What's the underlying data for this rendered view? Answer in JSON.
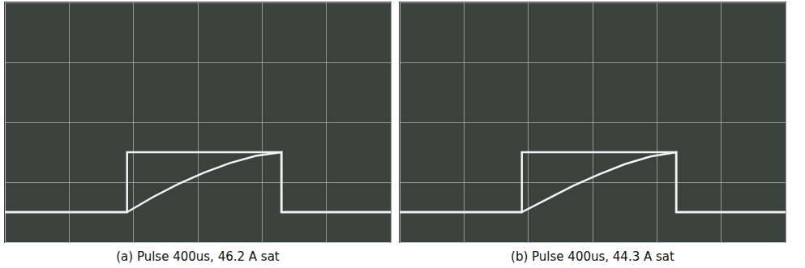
{
  "chart_data": [
    {
      "type": "line",
      "title": "(a) Pulse 400us, 46.2 A sat",
      "x": [
        0,
        1.9,
        1.9,
        2.3,
        2.7,
        3.1,
        3.5,
        3.9,
        4.3,
        4.3,
        6
      ],
      "series": [
        {
          "color": "#f2f2f2",
          "values": [
            0.5,
            0.5,
            1.5,
            1.5,
            1.5,
            1.5,
            1.5,
            1.5,
            1.5,
            0.5,
            0.5
          ]
        },
        {
          "color": "#f2f2f2",
          "values": [
            0.5,
            0.5,
            0.5,
            0.75,
            0.97,
            1.16,
            1.32,
            1.44,
            1.5,
            0.5,
            0.5
          ]
        }
      ],
      "xlim": [
        0,
        6
      ],
      "ylim": [
        0,
        4
      ],
      "xticks": [
        0,
        1,
        2,
        3,
        4,
        5,
        6
      ],
      "yticks": [
        0,
        1,
        2,
        3,
        4
      ],
      "grid": true,
      "tick_labels": false
    },
    {
      "type": "line",
      "title": "(b) Pulse 400us, 44.3 A sat",
      "x": [
        0,
        1.9,
        1.9,
        2.3,
        2.7,
        3.1,
        3.5,
        3.9,
        4.3,
        4.3,
        6
      ],
      "series": [
        {
          "color": "#f2f2f2",
          "values": [
            0.5,
            0.5,
            1.5,
            1.5,
            1.5,
            1.5,
            1.5,
            1.5,
            1.5,
            0.5,
            0.5
          ]
        },
        {
          "color": "#f2f2f2",
          "values": [
            0.5,
            0.5,
            0.5,
            0.72,
            0.94,
            1.13,
            1.3,
            1.43,
            1.5,
            0.5,
            0.5
          ]
        }
      ],
      "xlim": [
        0,
        6
      ],
      "ylim": [
        0,
        4
      ],
      "xticks": [
        0,
        1,
        2,
        3,
        4,
        5,
        6
      ],
      "yticks": [
        0,
        1,
        2,
        3,
        4
      ],
      "grid": true,
      "tick_labels": false
    }
  ]
}
